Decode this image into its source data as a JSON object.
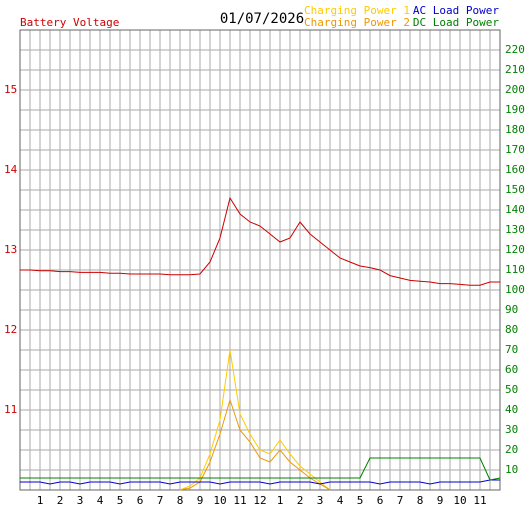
{
  "chart_data": {
    "type": "line",
    "title": "01/07/2026",
    "x": [
      0,
      0.5,
      1,
      1.5,
      2,
      2.5,
      3,
      3.5,
      4,
      4.5,
      5,
      5.5,
      6,
      6.5,
      7,
      7.5,
      8,
      8.5,
      9,
      9.5,
      10,
      10.5,
      11,
      11.5,
      12,
      12.5,
      13,
      13.5,
      14,
      14.5,
      15,
      15.5,
      16,
      16.5,
      17,
      17.5,
      18,
      18.5,
      19,
      19.5,
      20,
      20.5,
      21,
      21.5,
      22,
      22.5,
      23,
      23.5,
      24
    ],
    "xlim": [
      0,
      24
    ],
    "xticks": [
      1,
      2,
      3,
      4,
      5,
      6,
      7,
      8,
      9,
      10,
      11,
      12,
      {
        "value": 13,
        "label": "1"
      },
      {
        "value": 14,
        "label": "2"
      },
      {
        "value": 15,
        "label": "3"
      },
      {
        "value": 16,
        "label": "4"
      },
      {
        "value": 17,
        "label": "5"
      },
      {
        "value": 18,
        "label": "6"
      },
      {
        "value": 19,
        "label": "7"
      },
      {
        "value": 20,
        "label": "8"
      },
      {
        "value": 21,
        "label": "9"
      },
      {
        "value": 22,
        "label": "10"
      },
      {
        "value": 23,
        "label": "11"
      }
    ],
    "ylim": [
      10,
      15.75
    ],
    "yticks": [
      11,
      12,
      13,
      14,
      15
    ],
    "y2lim": [
      0,
      230
    ],
    "y2ticks": [
      10,
      20,
      30,
      40,
      50,
      60,
      70,
      80,
      90,
      100,
      110,
      120,
      130,
      140,
      150,
      160,
      170,
      180,
      190,
      200,
      210,
      220
    ],
    "grid": true,
    "series": [
      {
        "name": "Battery Voltage",
        "color": "#cc0000",
        "values": [
          12.75,
          12.75,
          12.74,
          12.74,
          12.73,
          12.73,
          12.72,
          12.72,
          12.72,
          12.71,
          12.71,
          12.7,
          12.7,
          12.7,
          12.7,
          12.69,
          12.69,
          12.69,
          12.7,
          12.85,
          13.15,
          13.65,
          13.45,
          13.35,
          13.3,
          13.2,
          13.1,
          13.15,
          13.35,
          13.2,
          13.1,
          13.0,
          12.9,
          12.85,
          12.8,
          12.78,
          12.75,
          12.68,
          12.65,
          12.62,
          12.61,
          12.6,
          12.58,
          12.58,
          12.57,
          12.56,
          12.56,
          12.6,
          12.6
        ]
      },
      {
        "name": "Charging Power 1",
        "color": "#ffcc00",
        "axis": "y2",
        "values": [
          null,
          null,
          null,
          null,
          null,
          null,
          null,
          null,
          null,
          null,
          null,
          null,
          null,
          null,
          null,
          null,
          0,
          2,
          6,
          18,
          35,
          70,
          38,
          28,
          20,
          18,
          25,
          18,
          12,
          8,
          4,
          0,
          null,
          null,
          null,
          null,
          null,
          null,
          null,
          null,
          null,
          null,
          null,
          null,
          null,
          null,
          null,
          null,
          null
        ]
      },
      {
        "name": "Charging Power 2",
        "color": "#ee9900",
        "axis": "y2",
        "values": [
          null,
          null,
          null,
          null,
          null,
          null,
          null,
          null,
          null,
          null,
          null,
          null,
          null,
          null,
          null,
          null,
          0,
          1,
          4,
          14,
          28,
          45,
          30,
          24,
          16,
          14,
          20,
          14,
          10,
          6,
          3,
          0,
          null,
          null,
          null,
          null,
          null,
          null,
          null,
          null,
          null,
          null,
          null,
          null,
          null,
          null,
          null,
          null,
          null
        ]
      },
      {
        "name": "AC Load Power",
        "color": "#0000cc",
        "axis": "y2",
        "values": [
          4,
          4,
          4,
          3,
          4,
          4,
          3,
          4,
          4,
          4,
          3,
          4,
          4,
          4,
          4,
          3,
          4,
          4,
          4,
          4,
          3,
          4,
          4,
          4,
          4,
          3,
          4,
          4,
          4,
          4,
          3,
          4,
          4,
          4,
          4,
          4,
          3,
          4,
          4,
          4,
          4,
          3,
          4,
          4,
          4,
          4,
          4,
          5,
          5
        ]
      },
      {
        "name": "DC Load Power",
        "color": "#008000",
        "axis": "y2",
        "values": [
          6,
          6,
          6,
          6,
          6,
          6,
          6,
          6,
          6,
          6,
          6,
          6,
          6,
          6,
          6,
          6,
          6,
          6,
          6,
          6,
          6,
          6,
          6,
          6,
          6,
          6,
          6,
          6,
          6,
          6,
          6,
          6,
          6,
          6,
          6,
          16,
          16,
          16,
          16,
          16,
          16,
          16,
          16,
          16,
          16,
          16,
          16,
          5,
          6
        ]
      }
    ]
  }
}
